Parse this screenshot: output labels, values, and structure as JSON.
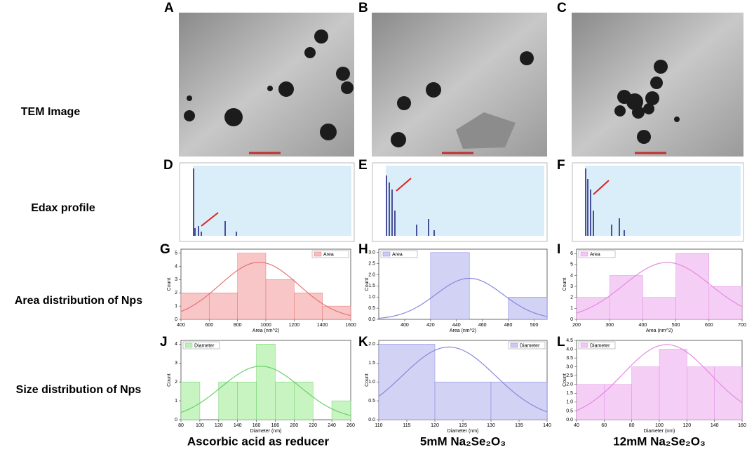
{
  "panels": [
    "A",
    "B",
    "C",
    "D",
    "E",
    "F",
    "G",
    "H",
    "I",
    "J",
    "K",
    "L"
  ],
  "row_labels": [
    "TEM Image",
    "Edax profile",
    "Area distribution of Nps",
    "Size distribution of Nps"
  ],
  "column_labels": [
    "Ascorbic acid as reducer",
    "5mM Na₂Se₂O₃",
    "12mM Na₂Se₂O₃"
  ],
  "chart_data": [
    {
      "type": "histogram",
      "x_label": "Area (nm^2)",
      "y_label": "Count",
      "bins": [
        400,
        600,
        800,
        1000,
        1200,
        1400,
        1600
      ],
      "series": [
        {
          "name": "Area",
          "color": "#f7bcbc",
          "values": [
            2,
            2,
            5,
            3,
            2,
            1
          ]
        }
      ],
      "line_color": "#e57373",
      "xlim": [
        400,
        1600
      ],
      "xticks": [
        400,
        600,
        800,
        1000,
        1200,
        1400,
        1600
      ],
      "ylim": [
        0,
        5.3
      ],
      "yticks": [
        0,
        1,
        2,
        3,
        4,
        5
      ],
      "legend": "upper right"
    },
    {
      "type": "histogram",
      "x_label": "Area (nm^2)",
      "y_label": "Count",
      "bins": [
        390,
        420,
        450,
        480,
        510
      ],
      "series": [
        {
          "name": "Area",
          "color": "#cacaf2",
          "values": [
            0,
            3,
            0,
            1
          ]
        }
      ],
      "line_color": "#8888e0",
      "xlim": [
        380,
        510
      ],
      "xticks": [
        400,
        420,
        440,
        460,
        480,
        500
      ],
      "ylim": [
        0,
        3.15
      ],
      "yticks": [
        {
          "value": 0,
          "label": "0.0"
        },
        {
          "value": 0.5,
          "label": "0.5"
        },
        {
          "value": 1,
          "label": "1.0"
        },
        {
          "value": 1.5,
          "label": "1.5"
        },
        {
          "value": 2,
          "label": "2.0"
        },
        {
          "value": 2.5,
          "label": "2.5"
        },
        {
          "value": 3,
          "label": "3.0"
        }
      ],
      "legend": "upper left"
    },
    {
      "type": "histogram",
      "x_label": "Area (nm^2)",
      "y_label": "Count",
      "bins": [
        200,
        300,
        400,
        500,
        600,
        700
      ],
      "series": [
        {
          "name": "Area",
          "color": "#f3c6f3",
          "values": [
            2,
            4,
            2,
            6,
            3
          ]
        }
      ],
      "line_color": "#e38be3",
      "xlim": [
        200,
        700
      ],
      "xticks": [
        200,
        300,
        400,
        500,
        600,
        700
      ],
      "ylim": [
        0,
        6.4
      ],
      "yticks": [
        0,
        1,
        2,
        3,
        4,
        5,
        6
      ],
      "legend": "upper left"
    },
    {
      "type": "histogram",
      "x_label": "Diameter (nm)",
      "y_label": "Count",
      "bins": [
        80,
        100,
        120,
        140,
        160,
        180,
        200,
        220,
        240,
        260
      ],
      "series": [
        {
          "name": "Diameter",
          "color": "#bdf2b6",
          "values": [
            2,
            0,
            2,
            2,
            4,
            2,
            2,
            0,
            1
          ]
        }
      ],
      "line_color": "#6cd06c",
      "xlim": [
        80,
        260
      ],
      "xticks": [
        80,
        100,
        120,
        140,
        160,
        180,
        200,
        220,
        240,
        260
      ],
      "ylim": [
        0,
        4.2
      ],
      "yticks": [
        0,
        1,
        2,
        3,
        4
      ],
      "legend": "upper left"
    },
    {
      "type": "histogram",
      "x_label": "Diameter (nm)",
      "y_label": "Count",
      "bins": [
        110,
        120,
        130,
        140
      ],
      "series": [
        {
          "name": "Diameter",
          "color": "#cacaf2",
          "values": [
            2,
            1,
            1
          ]
        }
      ],
      "line_color": "#8888e0",
      "xlim": [
        110,
        140
      ],
      "xticks": [
        110,
        115,
        120,
        125,
        130,
        135,
        140
      ],
      "ylim": [
        0,
        2.1
      ],
      "yticks": [
        {
          "value": 0,
          "label": "0.0"
        },
        {
          "value": 0.5,
          "label": "0.5"
        },
        {
          "value": 1,
          "label": "1.0"
        },
        {
          "value": 1.5,
          "label": "1.5"
        },
        {
          "value": 2,
          "label": "2.0"
        }
      ],
      "legend": "upper right"
    },
    {
      "type": "histogram",
      "x_label": "Diameter (nm)",
      "y_label": "Count",
      "bins": [
        40,
        60,
        80,
        100,
        120,
        140,
        160
      ],
      "series": [
        {
          "name": "Diameter",
          "color": "#f3c6f3",
          "values": [
            2,
            2,
            3,
            4,
            3,
            3
          ]
        }
      ],
      "line_color": "#e38be3",
      "xlim": [
        40,
        160
      ],
      "xticks": [
        40,
        60,
        80,
        100,
        120,
        140,
        160
      ],
      "ylim": [
        0,
        4.5
      ],
      "yticks": [
        {
          "value": 0,
          "label": "0.0"
        },
        {
          "value": 0.5,
          "label": "0.5"
        },
        {
          "value": 1,
          "label": "1.0"
        },
        {
          "value": 1.5,
          "label": "1.5"
        },
        {
          "value": 2,
          "label": "2.0"
        },
        {
          "value": 2.5,
          "label": "2.5"
        },
        {
          "value": 3,
          "label": "3.0"
        },
        {
          "value": 3.5,
          "label": "3.5"
        },
        {
          "value": 4,
          "label": "4.0"
        },
        {
          "value": 4.5,
          "label": "4.5"
        }
      ],
      "legend": "upper left"
    }
  ]
}
